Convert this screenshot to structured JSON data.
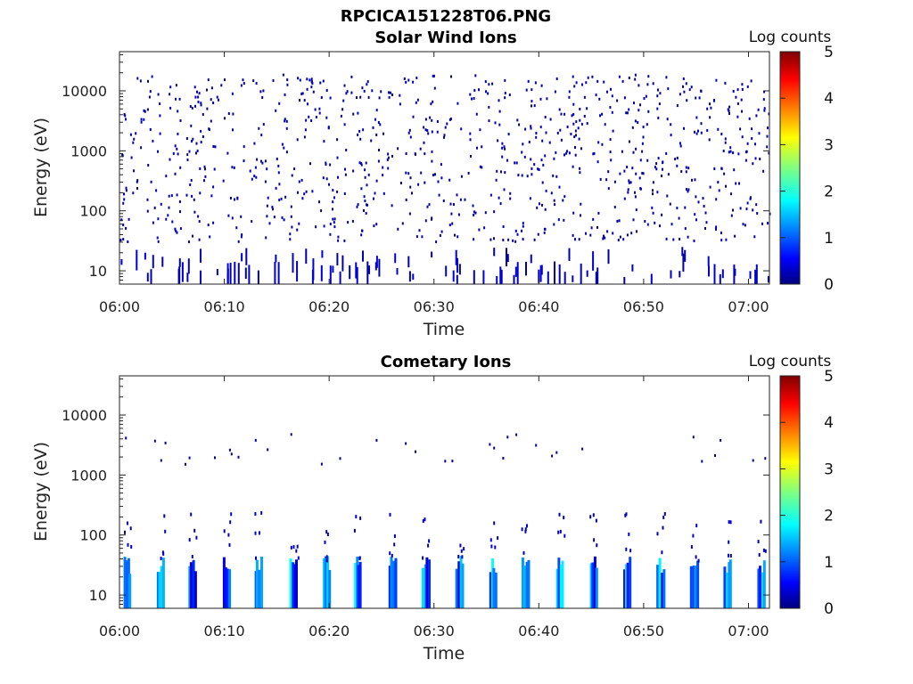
{
  "figure_title": "RPCICA151228T06.PNG",
  "colorbar": {
    "label": "Log counts",
    "ticks": [
      "0",
      "1",
      "2",
      "3",
      "4",
      "5"
    ],
    "range": [
      0,
      5
    ],
    "colormap": "jet"
  },
  "chart_data": [
    {
      "type": "heatmap",
      "title": "Solar Wind Ions",
      "xlabel": "Time",
      "ylabel": "Energy (eV)",
      "yscale": "log",
      "ylim": [
        6,
        45000
      ],
      "xlim": [
        "06:00",
        "07:02"
      ],
      "xticks": [
        "06:00",
        "06:10",
        "06:20",
        "06:30",
        "06:40",
        "06:50",
        "07:00"
      ],
      "yticks": [
        "10",
        "100",
        "1000",
        "10000"
      ],
      "colorbar_label": "Log counts",
      "description": "sparse scattered low counts (~0-0.5 log counts) across 10 eV - 20 keV",
      "bands": [
        {
          "name": "low-energy vertical streaks",
          "e_min": 6,
          "e_max": 25,
          "level": 0.3
        },
        {
          "name": "scattered background",
          "e_min": 30,
          "e_max": 20000,
          "level": 0.2
        }
      ]
    },
    {
      "type": "heatmap",
      "title": "Cometary Ions",
      "xlabel": "Time",
      "ylabel": "Energy (eV)",
      "yscale": "log",
      "ylim": [
        6,
        45000
      ],
      "xlim": [
        "06:00",
        "07:02"
      ],
      "xticks": [
        "06:00",
        "06:10",
        "06:20",
        "06:30",
        "06:40",
        "06:50",
        "07:00"
      ],
      "yticks": [
        "10",
        "100",
        "1000",
        "10000"
      ],
      "colorbar_label": "Log counts",
      "description": "periodic bursts every ~3 min below ~100 eV, peaking ~1.5-1.8 log counts",
      "burst_times_min": [
        0.3,
        3.5,
        6.5,
        9.8,
        12.8,
        16.2,
        19.3,
        22.3,
        25.6,
        28.8,
        32.0,
        35.2,
        38.3,
        41.6,
        44.8,
        48.0,
        51.2,
        54.4,
        57.6,
        60.8
      ],
      "burst_energy_range": [
        6,
        45
      ],
      "burst_peak_level": 1.7
    }
  ]
}
